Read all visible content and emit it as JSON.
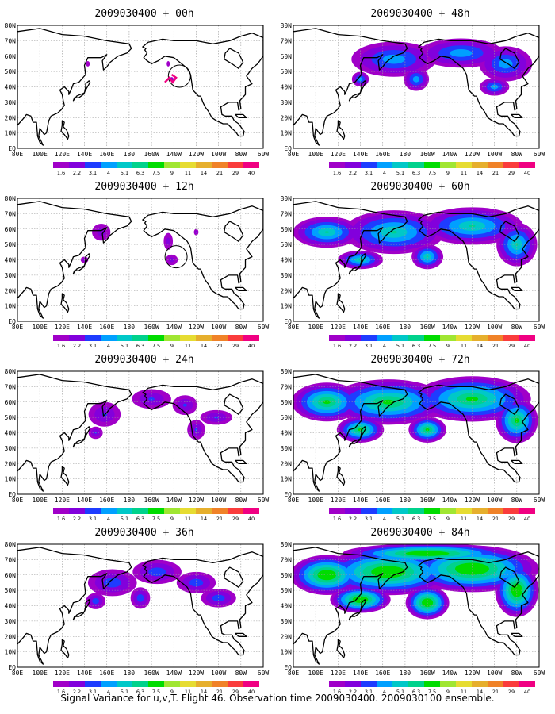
{
  "panels": [
    {
      "title": "2009030400 + 00h",
      "intensity": 0.25,
      "circle": "a"
    },
    {
      "title": "2009030400 + 12h",
      "intensity": 0.4,
      "circle": "b"
    },
    {
      "title": "2009030400 + 24h",
      "intensity": 0.5
    },
    {
      "title": "2009030400 + 36h",
      "intensity": 0.6
    },
    {
      "title": "2009030400 + 48h",
      "intensity": 0.75
    },
    {
      "title": "2009030400 + 60h",
      "intensity": 0.95
    },
    {
      "title": "2009030400 + 72h",
      "intensity": 1.15
    },
    {
      "title": "2009030400 + 84h",
      "intensity": 1.35
    }
  ],
  "lon_labels": [
    "80E",
    "100E",
    "120E",
    "140E",
    "160E",
    "180",
    "160W",
    "140W",
    "120W",
    "100W",
    "80W",
    "60W"
  ],
  "lat_labels": [
    "80N",
    "70N",
    "60N",
    "50N",
    "40N",
    "30N",
    "20N",
    "10N",
    "EQ"
  ],
  "colorbar": {
    "labels": [
      "1.6",
      "2.2",
      "3.1",
      "4",
      "5.1",
      "6.3",
      "7.5",
      "9",
      "11",
      "14",
      "21",
      "29",
      "40"
    ],
    "colors": [
      "#a000c8",
      "#8200dc",
      "#1e3cff",
      "#00a0ff",
      "#00c8c8",
      "#00d28c",
      "#00dc00",
      "#a0e632",
      "#e6dc32",
      "#e6af2d",
      "#f08228",
      "#fa3c3c",
      "#f00082"
    ]
  },
  "caption": "Signal Variance for u,v,T. Flight 46. Observation time 2009030400. 2009030100 ensemble."
}
